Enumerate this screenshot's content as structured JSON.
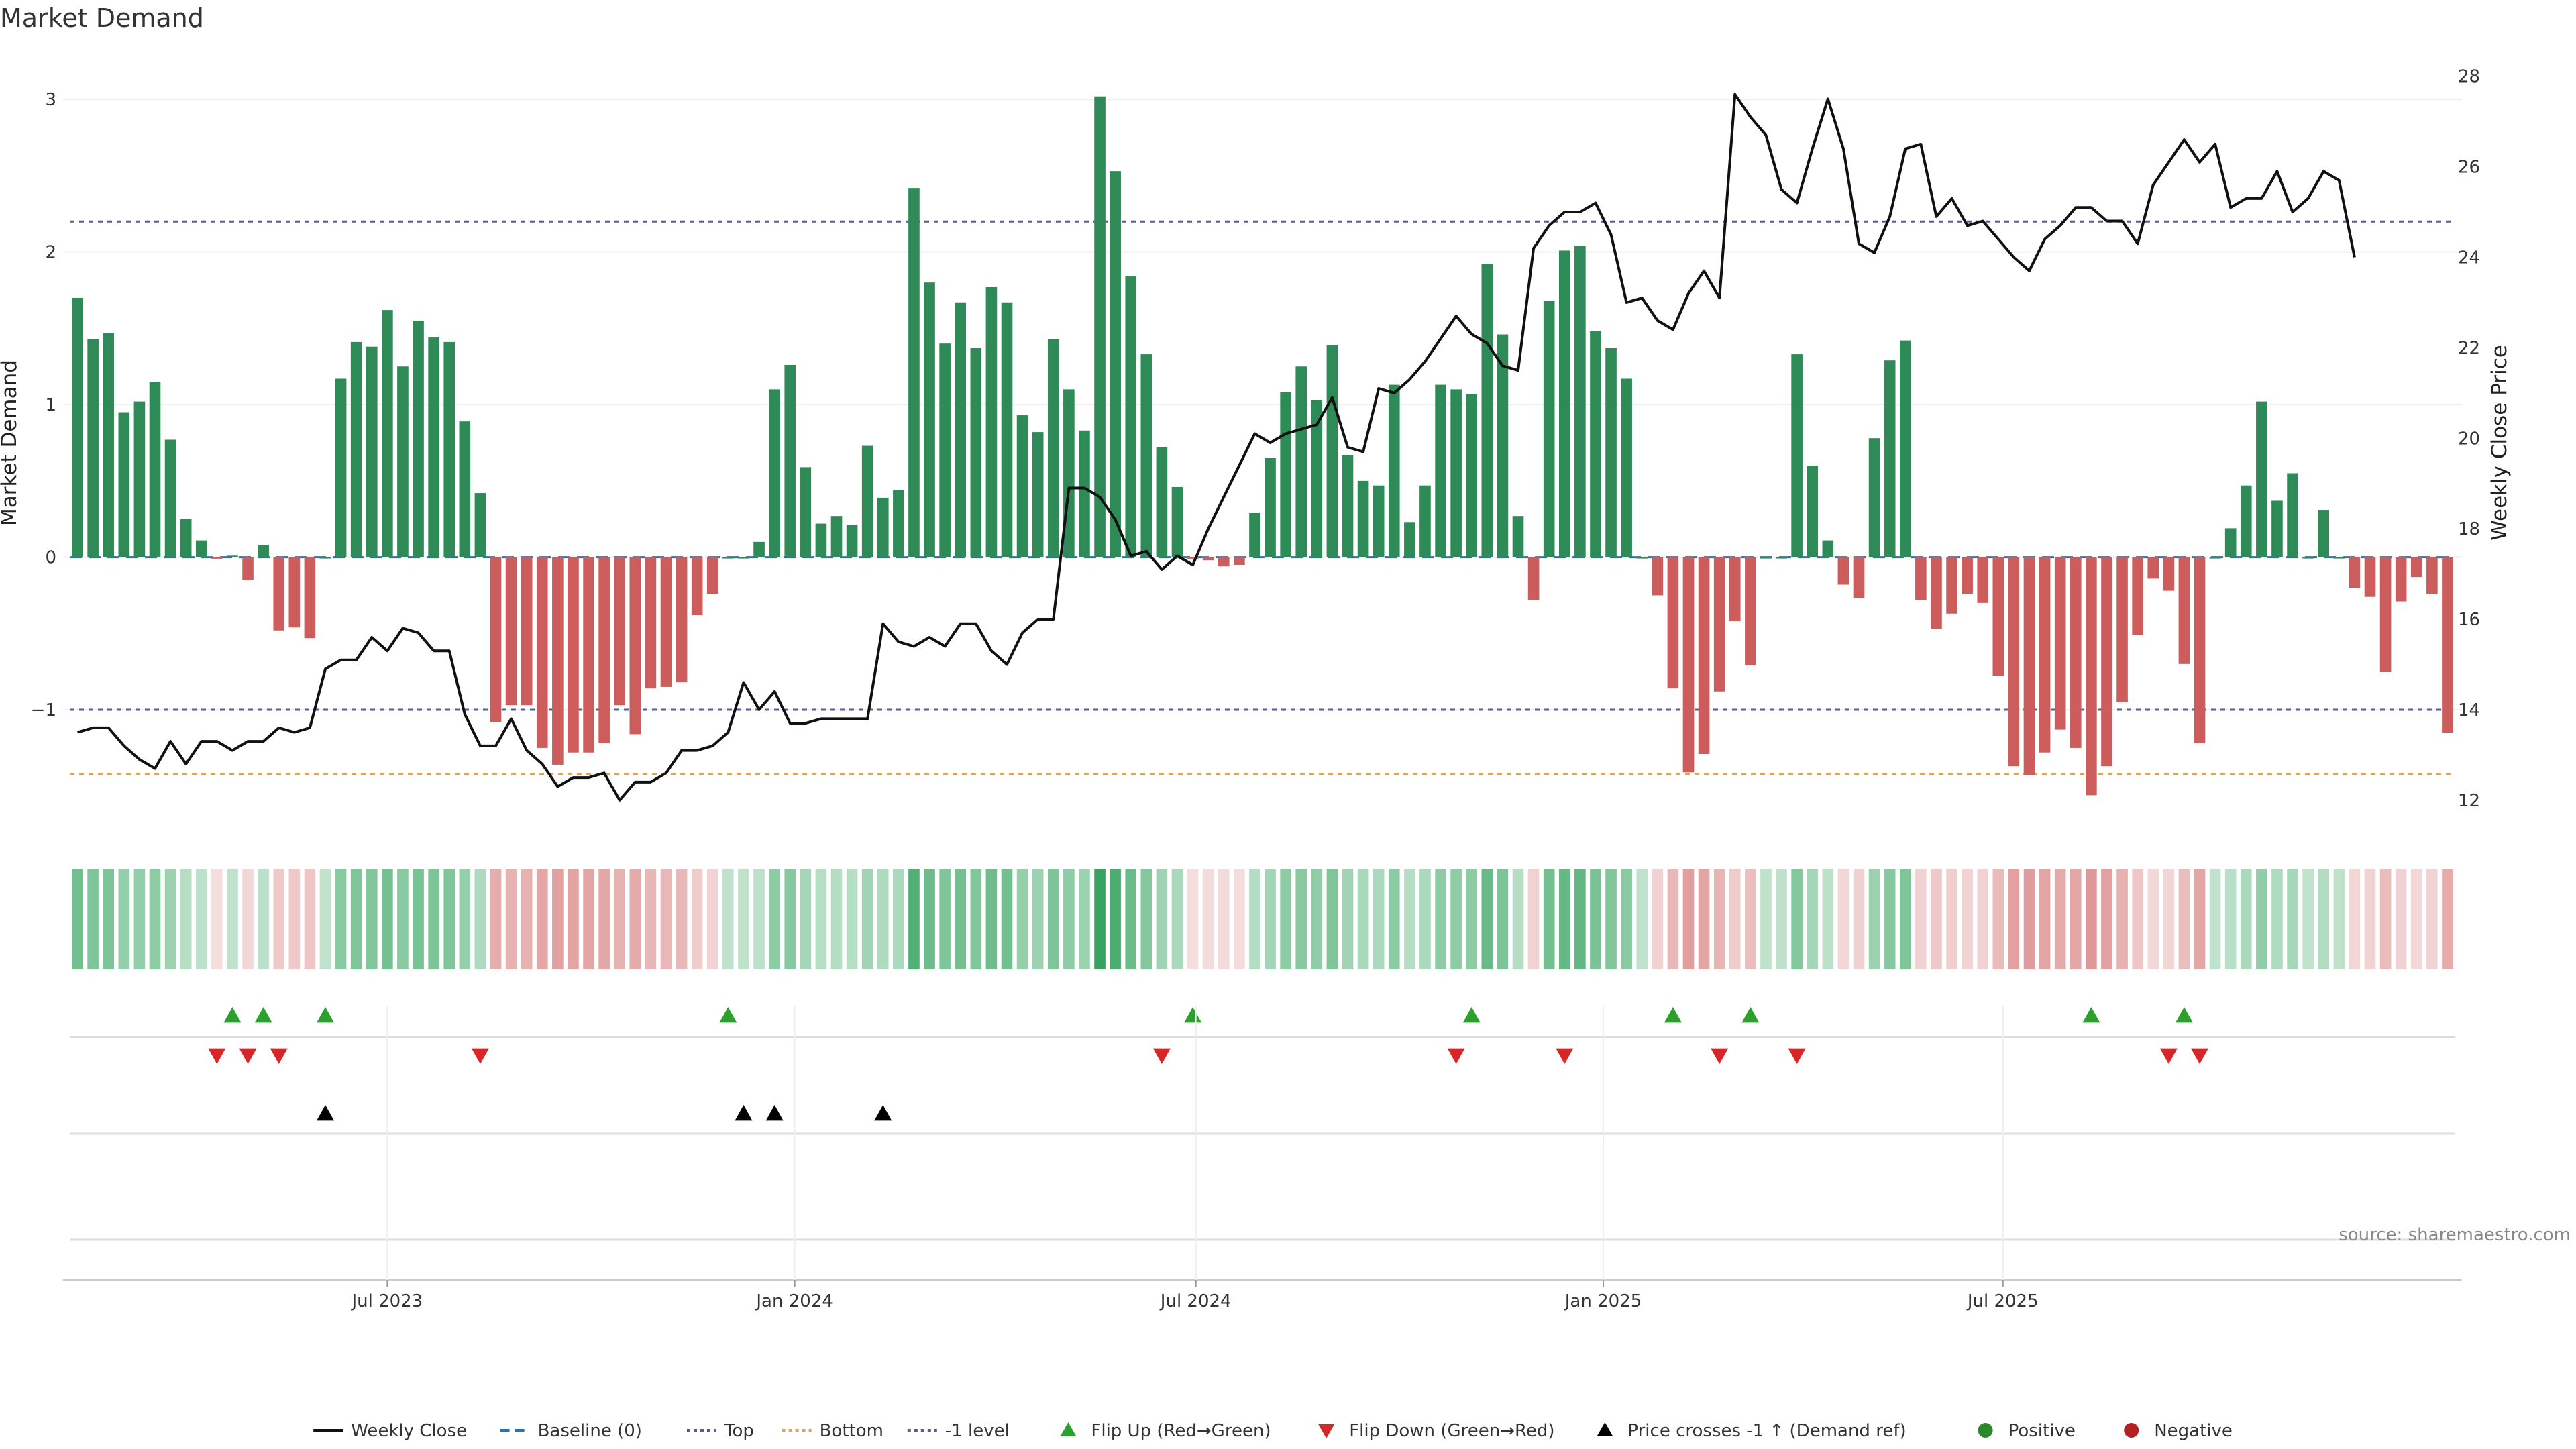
{
  "chart_data": {
    "type": "bar",
    "title": "Market Demand",
    "ylabel_left": "Market Demand",
    "ylabel_right": "Weekly Close Price",
    "ylim_left": [
      -1.8,
      3.3
    ],
    "ylim_right": [
      11.3,
      28.5
    ],
    "y_ticks_left": [
      -1,
      0,
      1,
      2,
      3
    ],
    "y_tick_labels_left": [
      "−1",
      "0",
      "1",
      "2",
      "3"
    ],
    "y_ticks_right": [
      12,
      14,
      16,
      18,
      20,
      22,
      24,
      26,
      28
    ],
    "x_tick_labels": [
      "Jul 2023",
      "Jan 2024",
      "Jul 2024",
      "Jan 2025",
      "Jul 2025"
    ],
    "x_tick_week_index": [
      20.5,
      46.8,
      72.7,
      99,
      124.8
    ],
    "reference_lines": {
      "top": 2.2,
      "baseline": 0,
      "bottom": -1.42,
      "minus_one": -1
    },
    "colors": {
      "positive": "#2e8b57",
      "negative": "#cd5c5c",
      "price": "#111111",
      "top": "#5b5b8a",
      "bottom": "#e0a060",
      "baseline": "#1f77b4",
      "flip_up": "#2ca02c",
      "flip_down": "#d62728",
      "cross": "#000000"
    },
    "series": [
      {
        "name": "Market Demand",
        "values": [
          1.7,
          1.43,
          1.47,
          0.95,
          1.02,
          1.15,
          0.77,
          0.25,
          0.11,
          -0.01,
          0.01,
          -0.15,
          0.08,
          -0.48,
          -0.46,
          -0.53,
          0.0,
          1.17,
          1.41,
          1.38,
          1.62,
          1.25,
          1.55,
          1.44,
          1.41,
          0.89,
          0.42,
          -1.08,
          -0.97,
          -0.97,
          -1.25,
          -1.36,
          -1.28,
          -1.28,
          -1.22,
          -0.97,
          -1.16,
          -0.86,
          -0.85,
          -0.82,
          -0.38,
          -0.24,
          0.0,
          0.0,
          0.1,
          1.1,
          1.26,
          0.59,
          0.22,
          0.27,
          0.21,
          0.73,
          0.39,
          0.44,
          2.42,
          1.8,
          1.4,
          1.67,
          1.37,
          1.77,
          1.67,
          0.93,
          0.82,
          1.43,
          1.1,
          0.83,
          3.02,
          2.53,
          1.84,
          1.33,
          0.72,
          0.46,
          -0.01,
          -0.02,
          -0.06,
          -0.05,
          0.29,
          0.65,
          1.08,
          1.25,
          1.03,
          1.39,
          0.67,
          0.5,
          0.47,
          1.13,
          0.23,
          0.47,
          1.13,
          1.1,
          1.07,
          1.92,
          1.46,
          0.27,
          -0.28,
          1.68,
          2.01,
          2.04,
          1.48,
          1.37,
          1.17,
          0.0,
          -0.25,
          -0.86,
          -1.41,
          -1.29,
          -0.88,
          -0.42,
          -0.71,
          0.0,
          0.0,
          1.33,
          0.6,
          0.11,
          -0.18,
          -0.27,
          0.78,
          1.29,
          1.42,
          -0.28,
          -0.47,
          -0.37,
          -0.24,
          -0.3,
          -0.78,
          -1.37,
          -1.43,
          -1.28,
          -1.13,
          -1.25,
          -1.56,
          -1.37,
          -0.95,
          -0.51,
          -0.14,
          -0.22,
          -0.7,
          -1.22,
          0.0,
          0.19,
          0.47,
          1.02,
          0.37,
          0.55,
          0.0,
          0.31,
          0.0,
          -0.2,
          -0.26,
          -0.75,
          -0.29,
          -0.13,
          -0.24,
          -1.15
        ]
      },
      {
        "name": "Weekly Close",
        "values": [
          13.5,
          13.6,
          13.6,
          13.2,
          12.9,
          12.7,
          13.3,
          12.8,
          13.3,
          13.3,
          13.1,
          13.3,
          13.3,
          13.6,
          13.5,
          13.6,
          14.9,
          15.1,
          15.1,
          15.6,
          15.3,
          15.8,
          15.7,
          15.3,
          15.3,
          13.9,
          13.2,
          13.2,
          13.8,
          13.1,
          12.8,
          12.3,
          12.5,
          12.5,
          12.6,
          12.0,
          12.4,
          12.4,
          12.6,
          13.1,
          13.1,
          13.2,
          13.5,
          14.6,
          14.0,
          14.4,
          13.7,
          13.7,
          13.8,
          13.8,
          13.8,
          13.8,
          15.9,
          15.5,
          15.4,
          15.6,
          15.4,
          15.9,
          15.9,
          15.3,
          15.0,
          15.7,
          16.0,
          16.0,
          18.9,
          18.9,
          18.7,
          18.2,
          17.4,
          17.5,
          17.1,
          17.4,
          17.2,
          18.0,
          18.7,
          19.4,
          20.1,
          19.9,
          20.1,
          20.2,
          20.3,
          20.9,
          19.8,
          19.7,
          21.1,
          21.0,
          21.3,
          21.7,
          22.2,
          22.7,
          22.3,
          22.1,
          21.6,
          21.5,
          24.2,
          24.7,
          25.0,
          25.0,
          25.2,
          24.5,
          23.0,
          23.1,
          22.6,
          22.4,
          23.2,
          23.7,
          23.1,
          27.6,
          27.1,
          26.7,
          25.5,
          25.2,
          26.4,
          27.5,
          26.4,
          24.3,
          24.1,
          24.9,
          26.4,
          26.5,
          24.9,
          25.3,
          24.7,
          24.8,
          24.4,
          24.0,
          23.7,
          24.4,
          24.7,
          25.1,
          25.1,
          24.8,
          24.8,
          24.3,
          25.6,
          26.1,
          26.6,
          26.1,
          26.5,
          25.1,
          25.3,
          25.3,
          25.9,
          25.0,
          25.3,
          25.9,
          25.7,
          24.0
        ]
      }
    ],
    "heat_strip": "Weekly demand intensity (green = positive, red = negative)",
    "events": {
      "flip_up_week_index": [
        10,
        12,
        16,
        42,
        72,
        90,
        103,
        108,
        130,
        136
      ],
      "flip_down_week_index": [
        9,
        11,
        13,
        26,
        70,
        89,
        96,
        106,
        111,
        135,
        137
      ],
      "price_cross_week_index": [
        16,
        43,
        45,
        52
      ]
    },
    "legend": [
      {
        "label": "Weekly Close",
        "icon": "solid-line-icon"
      },
      {
        "label": "Baseline (0)",
        "icon": "dashed-line-icon"
      },
      {
        "label": "Top",
        "icon": "dotted-line-icon"
      },
      {
        "label": "Bottom",
        "icon": "dotted-line-icon"
      },
      {
        "label": "-1 level",
        "icon": "dotted-line-icon"
      },
      {
        "label": "Flip Up (Red→Green)",
        "icon": "triangle-up-icon"
      },
      {
        "label": "Flip Down (Green→Red)",
        "icon": "triangle-down-icon"
      },
      {
        "label": "Price crosses -1 ↑ (Demand ref)",
        "icon": "triangle-up-icon"
      },
      {
        "label": "Positive",
        "icon": "dot-icon"
      },
      {
        "label": "Negative",
        "icon": "dot-icon"
      }
    ],
    "legend_placement": "bottom-center",
    "source": "source: sharemaestro.com"
  }
}
